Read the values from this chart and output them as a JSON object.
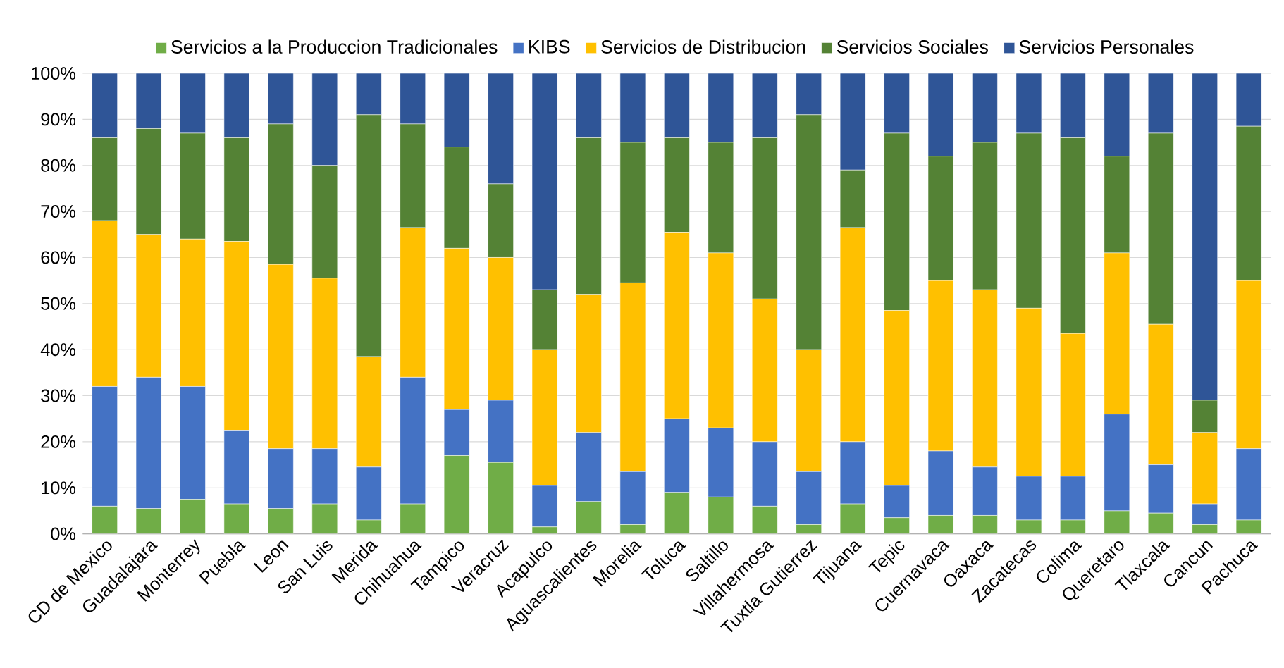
{
  "chart_data": {
    "type": "bar",
    "stacked": true,
    "grid": "y",
    "legend": "top",
    "categories": [
      "CD de Mexico",
      "Guadalajara",
      "Monterrey",
      "Puebla",
      "Leon",
      "San Luis",
      "Merida",
      "Chihuahua",
      "Tampico",
      "Veracruz",
      "Acapulco",
      "Aguascalientes",
      "Morelia",
      "Toluca",
      "Saltillo",
      "Villahermosa",
      "Tuxtla Gutierrez",
      "Tijuana",
      "Tepic",
      "Cuernavaca",
      "Oaxaca",
      "Zacatecas",
      "Colima",
      "Queretaro",
      "Tlaxcala",
      "Cancun",
      "Pachuca"
    ],
    "ylim": [
      0,
      100
    ],
    "yticks": [
      {
        "value": 0,
        "label": "0%"
      },
      {
        "value": 10,
        "label": "10%"
      },
      {
        "value": 20,
        "label": "20%"
      },
      {
        "value": 30,
        "label": "30%"
      },
      {
        "value": 40,
        "label": "40%"
      },
      {
        "value": 50,
        "label": "50%"
      },
      {
        "value": 60,
        "label": "60%"
      },
      {
        "value": 70,
        "label": "70%"
      },
      {
        "value": 80,
        "label": "80%"
      },
      {
        "value": 90,
        "label": "90%"
      },
      {
        "value": 100,
        "label": "100%"
      }
    ],
    "series": [
      {
        "name": "Servicios a la Produccion Tradicionales",
        "color": "#70ad47",
        "values": [
          6,
          5.5,
          7.5,
          6.5,
          5.5,
          6.5,
          3,
          6.5,
          17,
          15.5,
          1.5,
          7,
          2,
          9,
          8,
          6,
          2,
          6.5,
          3.5,
          4,
          4,
          3,
          3,
          5,
          4.5,
          2,
          3
        ]
      },
      {
        "name": "KIBS",
        "color": "#4472c4",
        "values": [
          26,
          28.5,
          24.5,
          16,
          13,
          12,
          11.5,
          27.5,
          10,
          13.5,
          9,
          15,
          11.5,
          16,
          15,
          14,
          11.5,
          13.5,
          7,
          14,
          10.5,
          9.5,
          9.5,
          21,
          10.5,
          4.5,
          15.5
        ]
      },
      {
        "name": "Servicios de Distribucion",
        "color": "#ffc000",
        "values": [
          36,
          31,
          32,
          41,
          40,
          37,
          24,
          32.5,
          35,
          31,
          29.5,
          30,
          41,
          40.5,
          38,
          31,
          26.5,
          46.5,
          38,
          37,
          38.5,
          36.5,
          31,
          35,
          30.5,
          15.5,
          36.5
        ]
      },
      {
        "name": "Servicios Sociales",
        "color": "#548235",
        "values": [
          18,
          23,
          23,
          22.5,
          30.5,
          24.5,
          52.5,
          22.5,
          22,
          16,
          13,
          34,
          30.5,
          20.5,
          24,
          35,
          51,
          12.5,
          38.5,
          27,
          32,
          38,
          42.5,
          21,
          41.5,
          7,
          33.5
        ]
      },
      {
        "name": "Servicios Personales",
        "color": "#2f5597",
        "values": [
          14,
          12,
          13,
          14,
          11,
          20,
          9,
          11,
          16,
          24,
          47,
          14,
          15,
          14,
          15,
          14,
          9,
          21,
          13,
          18,
          15,
          13,
          14,
          18,
          13,
          71,
          11.5
        ]
      }
    ]
  }
}
